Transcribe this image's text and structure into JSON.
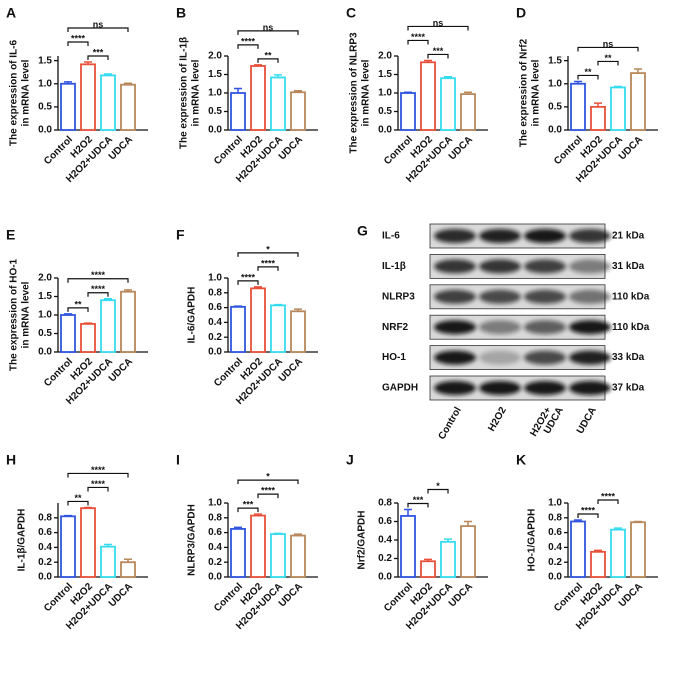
{
  "chart_data": [
    {
      "type": "bar",
      "letter": "A",
      "ylabel": [
        "The expression of IL-6",
        "in mRNA level"
      ],
      "categories": [
        "Control",
        "H2O2",
        "H2O2+UDCA",
        "UDCA"
      ],
      "values": [
        1.0,
        1.42,
        1.18,
        0.98
      ],
      "errors": [
        0.04,
        0.05,
        0.03,
        0.03
      ],
      "colors": [
        "#2f55e0",
        "#e8503a",
        "#35dcef",
        "#b8875a"
      ],
      "ylim": [
        0,
        1.6
      ],
      "yticks": [
        {
          "value": 0,
          "label": "0.0"
        },
        {
          "value": 0.5,
          "label": "0.5"
        },
        {
          "value": 1,
          "label": "1.0"
        },
        {
          "value": 1.5,
          "label": "1.5"
        }
      ],
      "comparisons": [
        {
          "pair": [
            1,
            2
          ],
          "label": "***"
        },
        {
          "pair": [
            0,
            1
          ],
          "label": "****"
        },
        {
          "pair": [
            0,
            3
          ],
          "label": "ns"
        }
      ]
    },
    {
      "type": "bar",
      "letter": "B",
      "ylabel": [
        "The expression of IL-1β",
        "in mRNA level"
      ],
      "categories": [
        "Control",
        "H2O2",
        "H2O2+UDCA",
        "UDCA"
      ],
      "values": [
        1.0,
        1.73,
        1.42,
        1.02
      ],
      "errors": [
        0.12,
        0.03,
        0.07,
        0.04
      ],
      "colors": [
        "#2f55e0",
        "#e8503a",
        "#35dcef",
        "#b8875a"
      ],
      "ylim": [
        0,
        2.0
      ],
      "yticks": [
        {
          "value": 0,
          "label": "0.0"
        },
        {
          "value": 0.5,
          "label": "0.5"
        },
        {
          "value": 1,
          "label": "1.0"
        },
        {
          "value": 1.5,
          "label": "1.5"
        },
        {
          "value": 2,
          "label": "2.0"
        }
      ],
      "comparisons": [
        {
          "pair": [
            1,
            2
          ],
          "label": "**"
        },
        {
          "pair": [
            0,
            1
          ],
          "label": "****"
        },
        {
          "pair": [
            0,
            3
          ],
          "label": "ns"
        }
      ]
    },
    {
      "type": "bar",
      "letter": "C",
      "ylabel": [
        "The expression of NLRP3",
        "in mRNA level"
      ],
      "categories": [
        "Control",
        "H2O2",
        "H2O2+UDCA",
        "UDCA"
      ],
      "values": [
        1.0,
        1.83,
        1.4,
        0.97
      ],
      "errors": [
        0.02,
        0.05,
        0.04,
        0.05
      ],
      "colors": [
        "#2f55e0",
        "#e8503a",
        "#35dcef",
        "#b8875a"
      ],
      "ylim": [
        0,
        2.0
      ],
      "yticks": [
        {
          "value": 0,
          "label": "0.0"
        },
        {
          "value": 0.5,
          "label": "0.5"
        },
        {
          "value": 1,
          "label": "1.0"
        },
        {
          "value": 1.5,
          "label": "1.5"
        },
        {
          "value": 2,
          "label": "2.0"
        }
      ],
      "comparisons": [
        {
          "pair": [
            1,
            2
          ],
          "label": "***"
        },
        {
          "pair": [
            0,
            1
          ],
          "label": "****"
        },
        {
          "pair": [
            0,
            3
          ],
          "label": "ns"
        }
      ]
    },
    {
      "type": "bar",
      "letter": "D",
      "ylabel": [
        "The expression of Nrf2",
        "in mRNA level"
      ],
      "categories": [
        "Control",
        "H2O2",
        "H2O2+UDCA",
        "UDCA"
      ],
      "values": [
        1.0,
        0.5,
        0.92,
        1.23
      ],
      "errors": [
        0.05,
        0.08,
        0.02,
        0.09
      ],
      "colors": [
        "#2f55e0",
        "#e8503a",
        "#35dcef",
        "#b8875a"
      ],
      "ylim": [
        0,
        1.6
      ],
      "yticks": [
        {
          "value": 0,
          "label": "0.0"
        },
        {
          "value": 0.5,
          "label": "0.5"
        },
        {
          "value": 1,
          "label": "1.0"
        },
        {
          "value": 1.5,
          "label": "1.5"
        }
      ],
      "comparisons": [
        {
          "pair": [
            0,
            1
          ],
          "label": "**"
        },
        {
          "pair": [
            1,
            2
          ],
          "label": "**"
        },
        {
          "pair": [
            0,
            3
          ],
          "label": "ns"
        }
      ]
    },
    {
      "type": "bar",
      "letter": "E",
      "ylabel": [
        "The expression of HO-1",
        "in mRNA level"
      ],
      "categories": [
        "Control",
        "H2O2",
        "H2O2+UDCA",
        "UDCA"
      ],
      "values": [
        1.0,
        0.76,
        1.4,
        1.63
      ],
      "errors": [
        0.03,
        0.02,
        0.04,
        0.05
      ],
      "colors": [
        "#2f55e0",
        "#e8503a",
        "#35dcef",
        "#b8875a"
      ],
      "ylim": [
        0,
        2.0
      ],
      "yticks": [
        {
          "value": 0,
          "label": "0.0"
        },
        {
          "value": 0.5,
          "label": "0.5"
        },
        {
          "value": 1,
          "label": "1.0"
        },
        {
          "value": 1.5,
          "label": "1.5"
        },
        {
          "value": 2,
          "label": "2.0"
        }
      ],
      "comparisons": [
        {
          "pair": [
            0,
            1
          ],
          "label": "**"
        },
        {
          "pair": [
            1,
            2
          ],
          "label": "****"
        },
        {
          "pair": [
            0,
            3
          ],
          "label": "****"
        }
      ]
    },
    {
      "type": "bar",
      "letter": "F",
      "ylabel": [
        "IL-6/GAPDH"
      ],
      "categories": [
        "Control",
        "H2O2",
        "H2O2+UDCA",
        "UDCA"
      ],
      "values": [
        0.61,
        0.86,
        0.63,
        0.55
      ],
      "errors": [
        0.01,
        0.02,
        0.01,
        0.03
      ],
      "colors": [
        "#2f55e0",
        "#e8503a",
        "#35dcef",
        "#b8875a"
      ],
      "ylim": [
        0,
        1.0
      ],
      "yticks": [
        {
          "value": 0,
          "label": "0.0"
        },
        {
          "value": 0.2,
          "label": "0.2"
        },
        {
          "value": 0.4,
          "label": "0.4"
        },
        {
          "value": 0.6,
          "label": "0.6"
        },
        {
          "value": 0.8,
          "label": "0.8"
        },
        {
          "value": 1,
          "label": "1.0"
        }
      ],
      "comparisons": [
        {
          "pair": [
            0,
            1
          ],
          "label": "****"
        },
        {
          "pair": [
            1,
            2
          ],
          "label": "****"
        },
        {
          "pair": [
            0,
            3
          ],
          "label": "*"
        }
      ]
    },
    {
      "type": "bar",
      "letter": "H",
      "ylabel": [
        "IL-1β/GAPDH"
      ],
      "categories": [
        "Control",
        "H2O2",
        "H2O2+UDCA",
        "UDCA"
      ],
      "values": [
        0.82,
        0.93,
        0.41,
        0.2
      ],
      "errors": [
        0.01,
        0.01,
        0.03,
        0.04
      ],
      "colors": [
        "#2f55e0",
        "#e8503a",
        "#35dcef",
        "#b8875a"
      ],
      "ylim": [
        0,
        1.0
      ],
      "yticks": [
        {
          "value": 0,
          "label": "0.0"
        },
        {
          "value": 0.2,
          "label": "0.2"
        },
        {
          "value": 0.4,
          "label": "0.4"
        },
        {
          "value": 0.6,
          "label": "0.6"
        },
        {
          "value": 0.8,
          "label": "0.8"
        }
      ],
      "comparisons": [
        {
          "pair": [
            0,
            1
          ],
          "label": "**"
        },
        {
          "pair": [
            1,
            2
          ],
          "label": "****"
        },
        {
          "pair": [
            0,
            3
          ],
          "label": "****"
        }
      ]
    },
    {
      "type": "bar",
      "letter": "I",
      "ylabel": [
        "NLRP3/GAPDH"
      ],
      "categories": [
        "Control",
        "H2O2",
        "H2O2+UDCA",
        "UDCA"
      ],
      "values": [
        0.65,
        0.83,
        0.58,
        0.56
      ],
      "errors": [
        0.02,
        0.02,
        0.01,
        0.02
      ],
      "colors": [
        "#2f55e0",
        "#e8503a",
        "#35dcef",
        "#b8875a"
      ],
      "ylim": [
        0,
        1.0
      ],
      "yticks": [
        {
          "value": 0,
          "label": "0.0"
        },
        {
          "value": 0.2,
          "label": "0.2"
        },
        {
          "value": 0.4,
          "label": "0.4"
        },
        {
          "value": 0.6,
          "label": "0.6"
        },
        {
          "value": 0.8,
          "label": "0.8"
        },
        {
          "value": 1,
          "label": "1.0"
        }
      ],
      "comparisons": [
        {
          "pair": [
            0,
            1
          ],
          "label": "***"
        },
        {
          "pair": [
            1,
            2
          ],
          "label": "****"
        },
        {
          "pair": [
            0,
            3
          ],
          "label": "*"
        }
      ]
    },
    {
      "type": "bar",
      "letter": "J",
      "ylabel": [
        "Nrf2/GAPDH"
      ],
      "categories": [
        "Control",
        "H2O2",
        "H2O2+UDCA",
        "UDCA"
      ],
      "values": [
        0.66,
        0.17,
        0.38,
        0.55
      ],
      "errors": [
        0.07,
        0.02,
        0.03,
        0.05
      ],
      "colors": [
        "#2f55e0",
        "#e8503a",
        "#35dcef",
        "#b8875a"
      ],
      "ylim": [
        0,
        0.8
      ],
      "yticks": [
        {
          "value": 0,
          "label": "0.0"
        },
        {
          "value": 0.2,
          "label": "0.2"
        },
        {
          "value": 0.4,
          "label": "0.4"
        },
        {
          "value": 0.6,
          "label": "0.6"
        },
        {
          "value": 0.8,
          "label": "0.8"
        }
      ],
      "comparisons": [
        {
          "pair": [
            0,
            1
          ],
          "label": "***"
        },
        {
          "pair": [
            1,
            2
          ],
          "label": "*"
        }
      ]
    },
    {
      "type": "bar",
      "letter": "K",
      "ylabel": [
        "HO-1/GAPDH"
      ],
      "categories": [
        "Control",
        "H2O2",
        "H2O2+UDCA",
        "UDCA"
      ],
      "values": [
        0.75,
        0.34,
        0.64,
        0.74
      ],
      "errors": [
        0.02,
        0.02,
        0.02,
        0.01
      ],
      "colors": [
        "#2f55e0",
        "#e8503a",
        "#35dcef",
        "#b8875a"
      ],
      "ylim": [
        0,
        1.0
      ],
      "yticks": [
        {
          "value": 0,
          "label": "0.0"
        },
        {
          "value": 0.2,
          "label": "0.2"
        },
        {
          "value": 0.4,
          "label": "0.4"
        },
        {
          "value": 0.6,
          "label": "0.6"
        },
        {
          "value": 0.8,
          "label": "0.8"
        },
        {
          "value": 1,
          "label": "1.0"
        }
      ],
      "comparisons": [
        {
          "pair": [
            0,
            1
          ],
          "label": "****"
        },
        {
          "pair": [
            1,
            2
          ],
          "label": "****"
        }
      ]
    }
  ],
  "blot": {
    "letter": "G",
    "bands": [
      {
        "name": "IL-6",
        "size": "21 kDa"
      },
      {
        "name": "IL-1β",
        "size": "31 kDa"
      },
      {
        "name": "NLRP3",
        "size": "110 kDa"
      },
      {
        "name": "NRF2",
        "size": "110 kDa"
      },
      {
        "name": "HO-1",
        "size": "33 kDa"
      },
      {
        "name": "GAPDH",
        "size": "37 kDa"
      }
    ],
    "lanes": [
      [
        "Control"
      ],
      [
        "H2O2"
      ],
      [
        "H2O2+",
        "UDCA"
      ],
      [
        "UDCA"
      ]
    ]
  }
}
